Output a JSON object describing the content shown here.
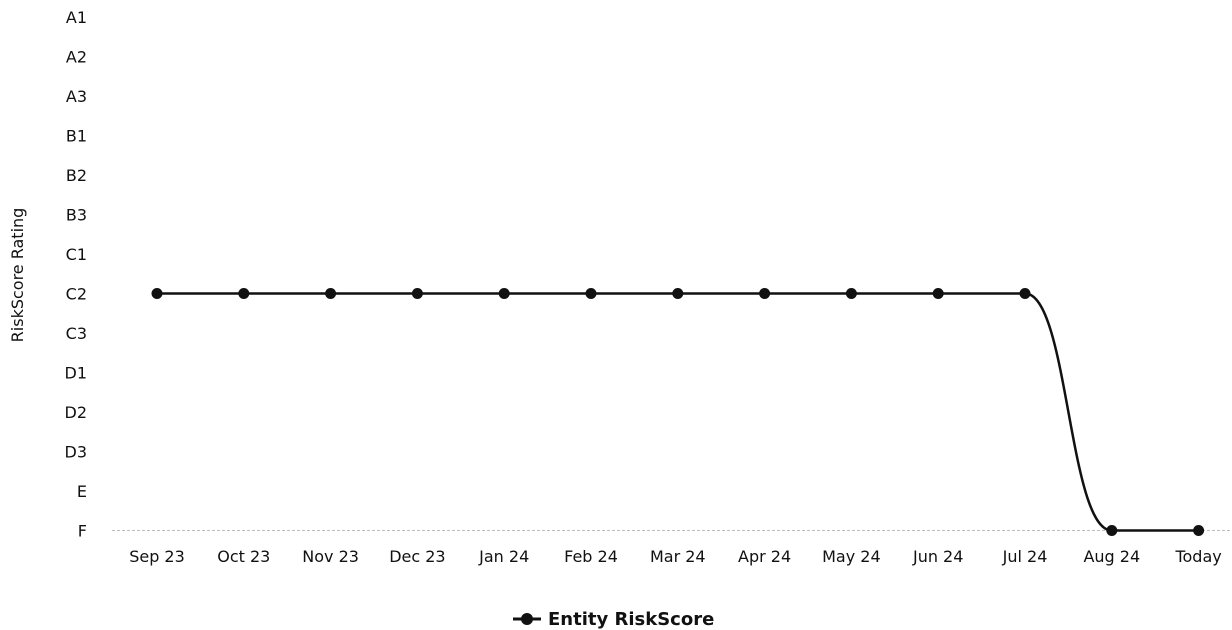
{
  "chart_data": {
    "type": "line",
    "title": "",
    "xlabel": "",
    "ylabel": "RiskScore Rating",
    "y_categories": [
      "A1",
      "A2",
      "A3",
      "B1",
      "B2",
      "B3",
      "C1",
      "C2",
      "C3",
      "D1",
      "D2",
      "D3",
      "E",
      "F"
    ],
    "x": [
      "Sep 23",
      "Oct 23",
      "Nov 23",
      "Dec 23",
      "Jan 24",
      "Feb 24",
      "Mar 24",
      "Apr 24",
      "May 24",
      "Jun 24",
      "Jul 24",
      "Aug 24",
      "Today"
    ],
    "series": [
      {
        "name": "Entity RiskScore",
        "color": "#111111",
        "values": [
          "C2",
          "C2",
          "C2",
          "C2",
          "C2",
          "C2",
          "C2",
          "C2",
          "C2",
          "C2",
          "C2",
          "F",
          "F"
        ]
      }
    ],
    "grid": false,
    "smooth": true,
    "legend_position": "bottom-center"
  }
}
